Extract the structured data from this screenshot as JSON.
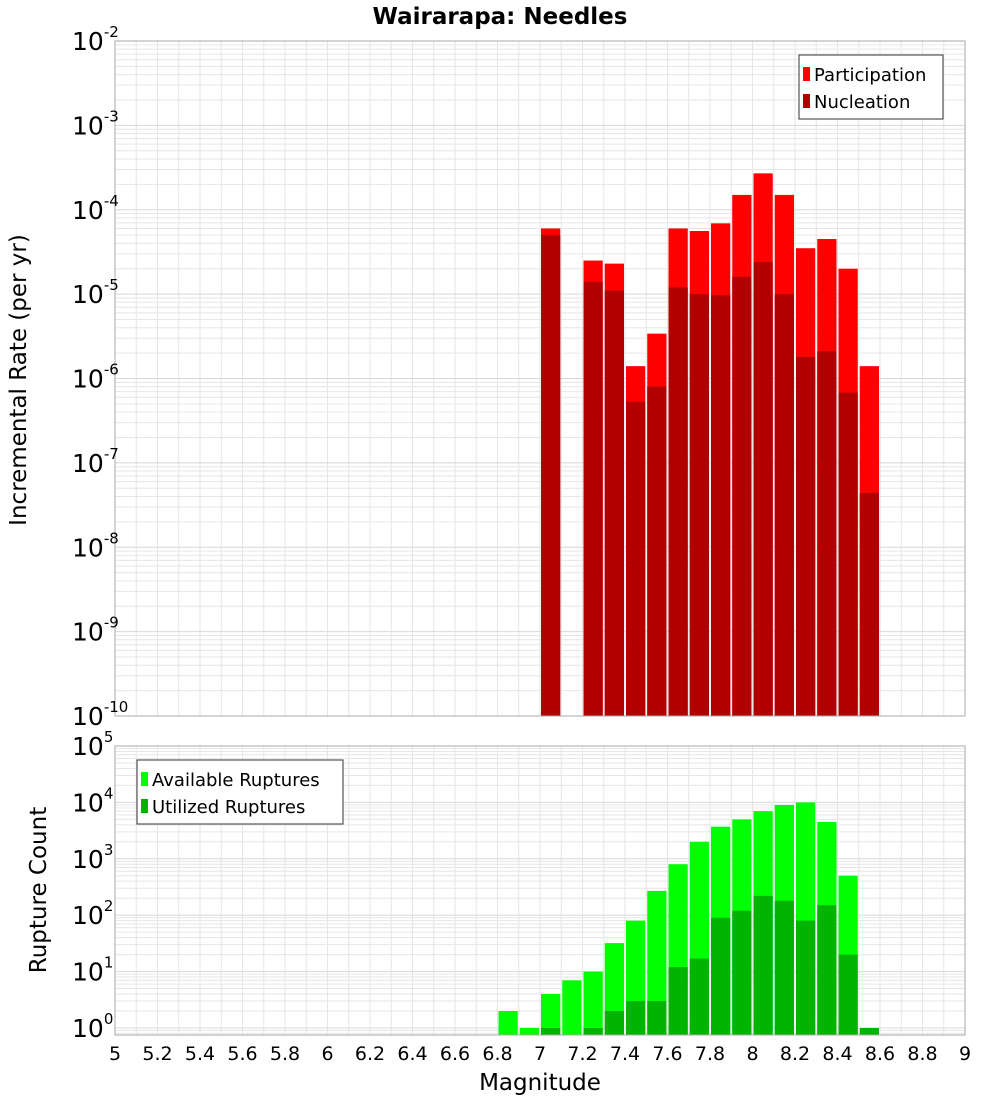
{
  "title": "Wairarapa: Needles",
  "colors": {
    "participation": "#ff0000",
    "nucleation": "#b20000",
    "available": "#00ff00",
    "utilized": "#00b400",
    "grid": "#e6e6e6",
    "frame": "#aaaaaa"
  },
  "chart_data": [
    {
      "type": "bar",
      "panel": "top",
      "scale": "log",
      "ylabel": "Incremental Rate (per yr)",
      "xlabel": "",
      "xlim": [
        5,
        9
      ],
      "ylim": [
        1e-10,
        0.01
      ],
      "yticks": [
        "10^-10",
        "10^-9",
        "10^-8",
        "10^-7",
        "10^-6",
        "10^-5",
        "10^-4",
        "10^-3",
        "10^-2"
      ],
      "bin_width": 0.1,
      "legend_position": "top-right",
      "x": [
        7.05,
        7.25,
        7.35,
        7.45,
        7.55,
        7.65,
        7.75,
        7.85,
        7.95,
        8.05,
        8.15,
        8.25,
        8.35,
        8.45,
        8.55
      ],
      "series": [
        {
          "name": "Participation",
          "color_key": "participation",
          "values": [
            6e-05,
            2.5e-05,
            2.3e-05,
            1.4e-06,
            3.4e-06,
            6e-05,
            5.6e-05,
            6.9e-05,
            0.00015,
            0.00027,
            0.00015,
            3.5e-05,
            4.5e-05,
            2e-05,
            1.4e-06
          ]
        },
        {
          "name": "Nucleation",
          "color_key": "nucleation",
          "values": [
            5e-05,
            1.4e-05,
            1.1e-05,
            5.3e-07,
            8e-07,
            1.2e-05,
            1e-05,
            9.7e-06,
            1.6e-05,
            2.4e-05,
            1e-05,
            1.8e-06,
            2.1e-06,
            6.8e-07,
            4.4e-08
          ]
        }
      ]
    },
    {
      "type": "bar",
      "panel": "bottom",
      "scale": "log",
      "ylabel": "Rupture Count",
      "xlabel": "Magnitude",
      "xlim": [
        5,
        9
      ],
      "ylim": [
        0.75,
        100000
      ],
      "yticks": [
        "10^0",
        "10^1",
        "10^2",
        "10^3",
        "10^4",
        "10^5"
      ],
      "xticks": [
        "5",
        "5.2",
        "5.4",
        "5.6",
        "5.8",
        "6",
        "6.2",
        "6.4",
        "6.6",
        "6.8",
        "7",
        "7.2",
        "7.4",
        "7.6",
        "7.8",
        "8",
        "8.2",
        "8.4",
        "8.6",
        "8.8",
        "9"
      ],
      "bin_width": 0.1,
      "legend_position": "top-left",
      "x": [
        6.85,
        6.95,
        7.05,
        7.15,
        7.25,
        7.35,
        7.45,
        7.55,
        7.65,
        7.75,
        7.85,
        7.95,
        8.05,
        8.15,
        8.25,
        8.35,
        8.45,
        8.55
      ],
      "series": [
        {
          "name": "Available Ruptures",
          "color_key": "available",
          "values": [
            2,
            1,
            4,
            7,
            10,
            32,
            80,
            270,
            800,
            2000,
            3700,
            5000,
            7000,
            9000,
            10000,
            4500,
            500,
            0
          ]
        },
        {
          "name": "Utilized Ruptures",
          "color_key": "utilized",
          "values": [
            0,
            0,
            1,
            0,
            1,
            2,
            3,
            3,
            12,
            17,
            90,
            120,
            220,
            180,
            80,
            150,
            20,
            1
          ]
        }
      ]
    }
  ]
}
